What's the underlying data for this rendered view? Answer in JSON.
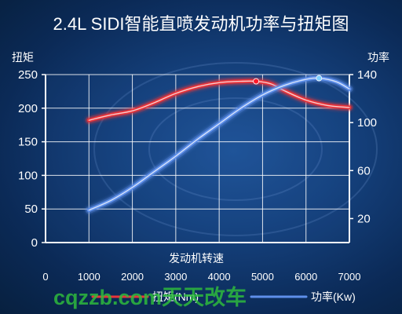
{
  "title": "2.4L SIDI智能直喷发动机功率与扭矩图",
  "watermark": "cqzzb.com天天改车",
  "chart_data": {
    "type": "line",
    "xlabel": "发动机转速",
    "ylabel_left": "扭矩",
    "ylabel_right": "功率",
    "x_ticks": [
      0,
      1000,
      2000,
      3000,
      4000,
      5000,
      6000,
      7000
    ],
    "y_left_ticks": [
      0,
      50,
      100,
      150,
      200,
      250
    ],
    "y_right_ticks": [
      20,
      60,
      100,
      140
    ],
    "xlim": [
      0,
      7000
    ],
    "ylim_left": [
      0,
      250
    ],
    "ylim_right": [
      0,
      140
    ],
    "grid": true,
    "legend_position": "bottom",
    "series": [
      {
        "name": "扭矩(Nm)",
        "axis": "left",
        "color": "#e8343a",
        "x": [
          1000,
          1500,
          2000,
          2500,
          3000,
          3500,
          4000,
          4500,
          4850,
          5200,
          5500,
          6000,
          6500,
          7000
        ],
        "y": [
          182,
          190,
          196,
          208,
          222,
          232,
          238,
          240,
          240,
          236,
          226,
          212,
          204,
          201
        ],
        "marker": {
          "x": 4850,
          "y": 240
        }
      },
      {
        "name": "功率(Kw)",
        "axis": "right",
        "color": "#5e8fea",
        "x": [
          1000,
          1500,
          2000,
          2500,
          3000,
          3500,
          4000,
          4500,
          5000,
          5500,
          6000,
          6300,
          6700,
          7000
        ],
        "y": [
          27,
          35,
          46,
          59,
          72,
          86,
          99,
          112,
          123,
          131,
          136,
          137,
          134,
          128
        ],
        "marker": {
          "x": 6300,
          "y": 137
        }
      }
    ]
  }
}
